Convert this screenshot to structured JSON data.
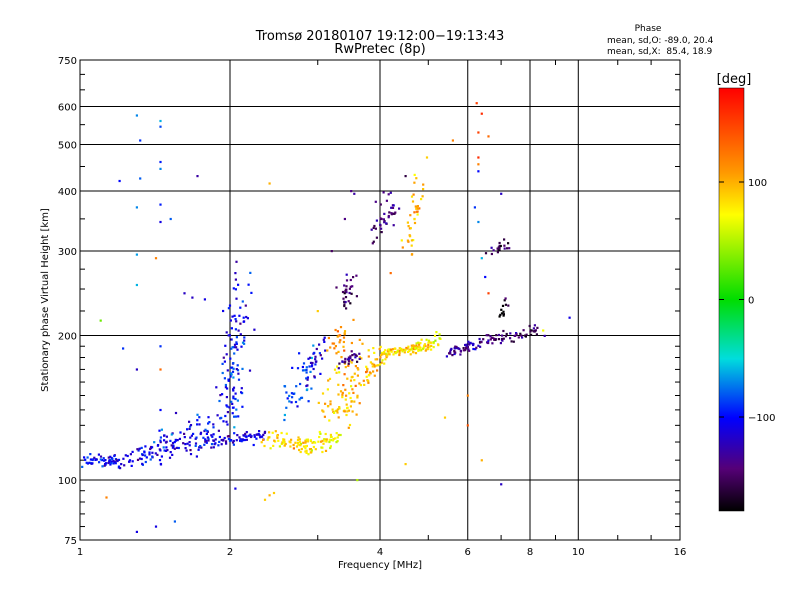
{
  "chart_data": {
    "type": "scatter",
    "title": "Tromsø 20180107 19:12:00−19:13:43",
    "subtitle": "RwPretec (8p)",
    "xlabel": "Frequency [MHz]",
    "ylabel": "Stationary phase Virtual Height [km]",
    "x_scale": "log",
    "y_scale": "log",
    "xlim": [
      1,
      16
    ],
    "ylim": [
      75,
      750
    ],
    "x_ticks": [
      1,
      2,
      4,
      6,
      8,
      10,
      16
    ],
    "x_tick_labels": [
      "1",
      "2",
      "4",
      "6",
      "8",
      "10",
      "16"
    ],
    "y_ticks": [
      75,
      100,
      200,
      300,
      400,
      500,
      600,
      750
    ],
    "y_tick_labels": [
      "75",
      "100",
      "200",
      "300",
      "400",
      "500",
      "600",
      "750"
    ],
    "grid": true,
    "phase_info": {
      "heading": "Phase",
      "line_o": "mean, sd,O: -89.0, 20.4",
      "line_x": "mean, sd,X:  85.4, 18.9"
    },
    "colorbar": {
      "label": "[deg]",
      "range": [
        -180,
        180
      ],
      "ticks": [
        100,
        0,
        -100
      ],
      "tick_labels": [
        "100",
        "0",
        "−100"
      ]
    },
    "clusters": [
      {
        "x": [
          1.0,
          1.22
        ],
        "y": [
          110,
          110
        ],
        "phase": -105,
        "n": 55,
        "jx": 0.01,
        "jy": 0.015
      },
      {
        "x": [
          1.22,
          1.85
        ],
        "y": [
          110,
          122
        ],
        "phase": -110,
        "n": 110,
        "jx": 0.02,
        "jy": 0.025
      },
      {
        "x": [
          1.35,
          1.9
        ],
        "y": [
          112,
          140
        ],
        "phase": -100,
        "n": 45,
        "jx": 0.05,
        "jy": 0.03
      },
      {
        "x": [
          1.85,
          2.35
        ],
        "y": [
          120,
          124
        ],
        "phase": -115,
        "n": 60,
        "jx": 0.01,
        "jy": 0.015
      },
      {
        "x": [
          1.95,
          2.1
        ],
        "y": [
          130,
          235
        ],
        "phase": -100,
        "n": 120,
        "jx": 0.03,
        "jy": 0.08
      },
      {
        "x": [
          2.35,
          2.9
        ],
        "y": [
          122,
          118
        ],
        "phase": 85,
        "n": 60,
        "jx": 0.015,
        "jy": 0.02
      },
      {
        "x": [
          2.6,
          2.95
        ],
        "y": [
          135,
          180
        ],
        "phase": -85,
        "n": 50,
        "jx": 0.025,
        "jy": 0.04
      },
      {
        "x": [
          2.85,
          3.3
        ],
        "y": [
          118,
          122
        ],
        "phase": 75,
        "n": 45,
        "jx": 0.015,
        "jy": 0.02
      },
      {
        "x": [
          2.9,
          3.05
        ],
        "y": [
          165,
          205
        ],
        "phase": -120,
        "n": 20,
        "jx": 0.015,
        "jy": 0.03
      },
      {
        "x": [
          3.1,
          3.4
        ],
        "y": [
          125,
          175
        ],
        "phase": 90,
        "n": 45,
        "jx": 0.03,
        "jy": 0.05
      },
      {
        "x": [
          3.2,
          3.45
        ],
        "y": [
          185,
          215
        ],
        "phase": 110,
        "n": 25,
        "jx": 0.02,
        "jy": 0.03
      },
      {
        "x": [
          3.4,
          3.75
        ],
        "y": [
          135,
          185
        ],
        "phase": 100,
        "n": 55,
        "jx": 0.03,
        "jy": 0.05
      },
      {
        "x": [
          3.35,
          3.6
        ],
        "y": [
          175,
          182
        ],
        "phase": -140,
        "n": 25,
        "jx": 0.02,
        "jy": 0.01
      },
      {
        "x": [
          3.35,
          3.55
        ],
        "y": [
          230,
          265
        ],
        "phase": -150,
        "n": 30,
        "jx": 0.015,
        "jy": 0.04
      },
      {
        "x": [
          3.7,
          4.1
        ],
        "y": [
          160,
          185
        ],
        "phase": 95,
        "n": 40,
        "jx": 0.02,
        "jy": 0.02
      },
      {
        "x": [
          4.05,
          5.2
        ],
        "y": [
          185,
          190
        ],
        "phase": 85,
        "n": 75,
        "jx": 0.01,
        "jy": 0.01
      },
      {
        "x": [
          4.6,
          5.3
        ],
        "y": [
          185,
          200
        ],
        "phase": 70,
        "n": 30,
        "jx": 0.015,
        "jy": 0.015
      },
      {
        "x": [
          3.9,
          4.25
        ],
        "y": [
          320,
          385
        ],
        "phase": -140,
        "n": 40,
        "jx": 0.02,
        "jy": 0.03
      },
      {
        "x": [
          4.55,
          4.85
        ],
        "y": [
          310,
          420
        ],
        "phase": 100,
        "n": 40,
        "jx": 0.015,
        "jy": 0.05
      },
      {
        "x": [
          5.5,
          6.6
        ],
        "y": [
          185,
          195
        ],
        "phase": -130,
        "n": 55,
        "jx": 0.015,
        "jy": 0.015
      },
      {
        "x": [
          6.5,
          8.3
        ],
        "y": [
          195,
          205
        ],
        "phase": -150,
        "n": 55,
        "jx": 0.02,
        "jy": 0.015
      },
      {
        "x": [
          6.6,
          7.3
        ],
        "y": [
          300,
          310
        ],
        "phase": -160,
        "n": 20,
        "jx": 0.02,
        "jy": 0.01
      },
      {
        "x": [
          6.8,
          7.2
        ],
        "y": [
          210,
          235
        ],
        "phase": -170,
        "n": 12,
        "jx": 0.01,
        "jy": 0.02
      }
    ],
    "isolated_points": [
      {
        "x": 1.3,
        "y": 575,
        "phase": -70
      },
      {
        "x": 1.32,
        "y": 510,
        "phase": -90
      },
      {
        "x": 1.45,
        "y": 560,
        "phase": -60
      },
      {
        "x": 1.45,
        "y": 545,
        "phase": -85
      },
      {
        "x": 1.45,
        "y": 460,
        "phase": -95
      },
      {
        "x": 1.45,
        "y": 445,
        "phase": -70
      },
      {
        "x": 1.32,
        "y": 425,
        "phase": -80
      },
      {
        "x": 1.2,
        "y": 420,
        "phase": -100
      },
      {
        "x": 1.72,
        "y": 430,
        "phase": -130
      },
      {
        "x": 1.3,
        "y": 370,
        "phase": -70
      },
      {
        "x": 1.45,
        "y": 375,
        "phase": -95
      },
      {
        "x": 1.45,
        "y": 345,
        "phase": -110
      },
      {
        "x": 1.52,
        "y": 350,
        "phase": -80
      },
      {
        "x": 1.3,
        "y": 295,
        "phase": -65
      },
      {
        "x": 1.42,
        "y": 290,
        "phase": 120
      },
      {
        "x": 1.3,
        "y": 255,
        "phase": -60
      },
      {
        "x": 1.62,
        "y": 245,
        "phase": -120
      },
      {
        "x": 1.68,
        "y": 240,
        "phase": -120
      },
      {
        "x": 1.78,
        "y": 238,
        "phase": -110
      },
      {
        "x": 1.1,
        "y": 215,
        "phase": 30
      },
      {
        "x": 1.22,
        "y": 188,
        "phase": -90
      },
      {
        "x": 1.3,
        "y": 170,
        "phase": -120
      },
      {
        "x": 1.45,
        "y": 190,
        "phase": -90
      },
      {
        "x": 1.45,
        "y": 170,
        "phase": 130
      },
      {
        "x": 1.45,
        "y": 140,
        "phase": -100
      },
      {
        "x": 2.06,
        "y": 285,
        "phase": -130
      },
      {
        "x": 2.05,
        "y": 270,
        "phase": -120
      },
      {
        "x": 2.4,
        "y": 415,
        "phase": 100
      },
      {
        "x": 3.0,
        "y": 225,
        "phase": 90
      },
      {
        "x": 3.2,
        "y": 300,
        "phase": -150
      },
      {
        "x": 3.4,
        "y": 350,
        "phase": -140
      },
      {
        "x": 3.5,
        "y": 400,
        "phase": -140
      },
      {
        "x": 3.55,
        "y": 395,
        "phase": -130
      },
      {
        "x": 4.5,
        "y": 430,
        "phase": -160
      },
      {
        "x": 4.5,
        "y": 108,
        "phase": 90
      },
      {
        "x": 3.6,
        "y": 100,
        "phase": 50
      },
      {
        "x": 4.2,
        "y": 270,
        "phase": 130
      },
      {
        "x": 5.6,
        "y": 510,
        "phase": 120
      },
      {
        "x": 6.25,
        "y": 610,
        "phase": 150
      },
      {
        "x": 6.4,
        "y": 580,
        "phase": 160
      },
      {
        "x": 6.3,
        "y": 530,
        "phase": 150
      },
      {
        "x": 6.6,
        "y": 520,
        "phase": 130
      },
      {
        "x": 6.3,
        "y": 470,
        "phase": 160
      },
      {
        "x": 6.3,
        "y": 455,
        "phase": 120
      },
      {
        "x": 6.3,
        "y": 440,
        "phase": -100
      },
      {
        "x": 7.0,
        "y": 395,
        "phase": -120
      },
      {
        "x": 6.2,
        "y": 370,
        "phase": -90
      },
      {
        "x": 6.3,
        "y": 345,
        "phase": -70
      },
      {
        "x": 6.4,
        "y": 290,
        "phase": -60
      },
      {
        "x": 6.5,
        "y": 265,
        "phase": -100
      },
      {
        "x": 6.6,
        "y": 245,
        "phase": 150
      },
      {
        "x": 6.0,
        "y": 150,
        "phase": 120
      },
      {
        "x": 6.4,
        "y": 110,
        "phase": 100
      },
      {
        "x": 6.0,
        "y": 130,
        "phase": 140
      },
      {
        "x": 7.0,
        "y": 98,
        "phase": -120
      },
      {
        "x": 9.6,
        "y": 218,
        "phase": -110
      },
      {
        "x": 8.5,
        "y": 205,
        "phase": 70
      },
      {
        "x": 5.4,
        "y": 135,
        "phase": 90
      },
      {
        "x": 1.13,
        "y": 92,
        "phase": 120
      },
      {
        "x": 1.3,
        "y": 78,
        "phase": -110
      },
      {
        "x": 1.42,
        "y": 80,
        "phase": -110
      },
      {
        "x": 1.55,
        "y": 82,
        "phase": -80
      },
      {
        "x": 2.05,
        "y": 96,
        "phase": -110
      },
      {
        "x": 2.35,
        "y": 91,
        "phase": 90
      },
      {
        "x": 2.4,
        "y": 93,
        "phase": 100
      },
      {
        "x": 2.45,
        "y": 94,
        "phase": 90
      }
    ]
  }
}
